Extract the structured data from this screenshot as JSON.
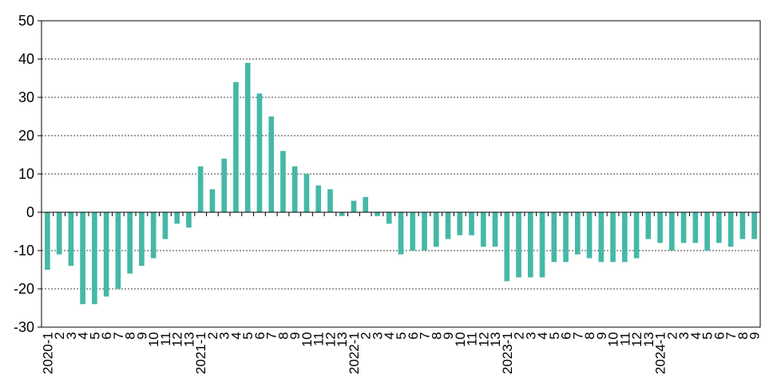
{
  "chart_data": {
    "type": "bar",
    "title": "",
    "xlabel": "",
    "ylabel": "",
    "ylim": [
      -30,
      50
    ],
    "yticks": [
      50,
      40,
      30,
      20,
      10,
      0,
      -10,
      -20,
      -30
    ],
    "ytick_labels": [
      "50",
      "40",
      "30",
      "20",
      "10",
      "0",
      "-10",
      "-20",
      "-30"
    ],
    "grid": "horizontal dotted",
    "legend": "none",
    "bar_color": "#45b8a6",
    "categories": [
      "2020-1",
      "2",
      "3",
      "4",
      "5",
      "6",
      "7",
      "8",
      "9",
      "10",
      "11",
      "12",
      "13",
      "2021-1",
      "2",
      "3",
      "4",
      "5",
      "6",
      "7",
      "8",
      "9",
      "10",
      "11",
      "12",
      "13",
      "2022-1",
      "2",
      "3",
      "4",
      "5",
      "6",
      "7",
      "8",
      "9",
      "10",
      "11",
      "12",
      "13",
      "2023-1",
      "2",
      "3",
      "4",
      "5",
      "6",
      "7",
      "8",
      "9",
      "10",
      "11",
      "12",
      "13",
      "2024-1",
      "2",
      "3",
      "4",
      "5",
      "6",
      "7",
      "8",
      "9"
    ],
    "values": [
      -15,
      -11,
      -14,
      -24,
      -24,
      -22,
      -20,
      -16,
      -14,
      -12,
      -7,
      -3,
      -4,
      12,
      6,
      14,
      34,
      39,
      31,
      25,
      16,
      12,
      10,
      7,
      6,
      -1,
      3,
      4,
      -1,
      -3,
      -11,
      -10,
      -10,
      -9,
      -7,
      -6,
      -6,
      -9,
      -9,
      -18,
      -17,
      -17,
      -17,
      -13,
      -13,
      -11,
      -12,
      -13,
      -13,
      -13,
      -12,
      -7,
      -8,
      -10,
      -8,
      -8,
      -10,
      -8,
      -9,
      -7,
      -7
    ]
  }
}
